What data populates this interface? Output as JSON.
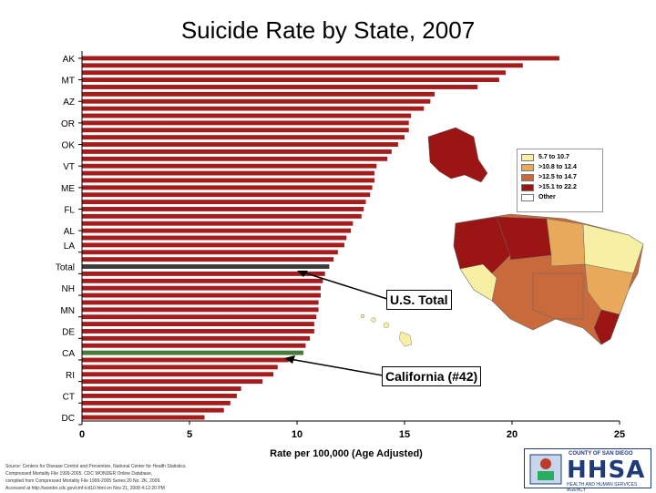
{
  "chart_data": {
    "type": "bar",
    "orientation": "horizontal",
    "title": "Suicide Rate by State, 2007",
    "xlabel": "Rate per 100,000 (Age Adjusted)",
    "xlim": [
      0,
      25
    ],
    "xticks": [
      0,
      5,
      10,
      15,
      20,
      25
    ],
    "category_labels": [
      "AK",
      "MT",
      "AZ",
      "OR",
      "OK",
      "VT",
      "ME",
      "FL",
      "AL",
      "LA",
      "Total",
      "NH",
      "MN",
      "DE",
      "CA",
      "RI",
      "CT",
      "DC"
    ],
    "values": [
      22.2,
      20.5,
      19.7,
      19.4,
      18.4,
      16.4,
      16.2,
      15.9,
      15.3,
      15.2,
      15.2,
      15.0,
      14.7,
      14.4,
      14.2,
      13.7,
      13.6,
      13.6,
      13.5,
      13.4,
      13.2,
      13.1,
      13.0,
      12.6,
      12.5,
      12.3,
      12.2,
      11.9,
      11.7,
      11.5,
      11.3,
      11.2,
      11.1,
      11.1,
      11.0,
      11.0,
      10.9,
      10.8,
      10.8,
      10.6,
      10.4,
      10.3,
      9.6,
      9.1,
      8.9,
      8.4,
      7.4,
      7.2,
      6.9,
      6.6,
      5.7
    ],
    "highlight": {
      "Total": 11.3,
      "CA": 9.6
    },
    "colors": {
      "bar": "#a51c1c",
      "total": "#3b3b3b",
      "california": "#4a7a37"
    },
    "legend": {
      "placement": "right",
      "entries": [
        {
          "label": "5.7 to 10.7",
          "color": "#f6efa4"
        },
        {
          "label": ">10.8 to 12.4",
          "color": "#e8a95a"
        },
        {
          "label": ">12.5 to 14.7",
          "color": "#c86a3c"
        },
        {
          "label": ">15.1 to 22.2",
          "color": "#9c1515"
        },
        {
          "label": "Other",
          "color": "#ffffff"
        }
      ]
    },
    "annotations": [
      "U.S. Total",
      "California (#42)"
    ]
  },
  "source_lines": [
    "Source: Centers for Disease Control and Prevention, National Center for Health Statistics.",
    "Compressed Mortality File 1999-2005. CDC WONDER Online Database,",
    "compiled from Compressed Mortality File 1999-2005 Series 20 No. 2K, 2009.",
    "Accessed at http://wonder.cdc.gov/cmf-icd10.html on Nov 21, 2008 4:12:20 PM"
  ],
  "logo": {
    "county": "COUNTY OF SAN DIEGO",
    "name": "HHSA",
    "subtitle": "HEALTH AND HUMAN SERVICES AGENCY"
  }
}
